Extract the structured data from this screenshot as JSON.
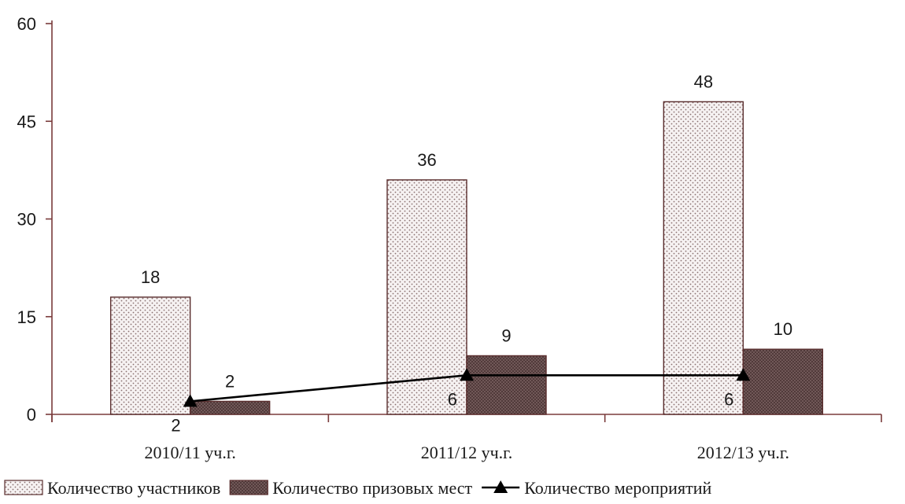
{
  "chart_data": {
    "type": "bar",
    "categories": [
      "2010/11 уч.г.",
      "2011/12 уч.г.",
      "2012/13 уч.г."
    ],
    "series": [
      {
        "name": "Количество участников",
        "type": "bar",
        "values": [
          18,
          36,
          48
        ],
        "labels": [
          "18",
          "36",
          "48"
        ],
        "pattern": "dotted",
        "color": "#f4f0f0"
      },
      {
        "name": "Количество призовых мест",
        "type": "bar",
        "values": [
          2,
          9,
          10
        ],
        "labels": [
          "2",
          "9",
          "10"
        ],
        "pattern": "crosshatch",
        "color": "#6e5656"
      },
      {
        "name": "Количество мероприятий",
        "type": "line",
        "marker": "triangle",
        "values": [
          2,
          6,
          6
        ],
        "labels": [
          "2",
          "6",
          "6"
        ],
        "color": "#000000"
      }
    ],
    "title": "",
    "xlabel": "",
    "ylabel": "",
    "ylim": [
      0,
      60
    ],
    "yticks": [
      "0",
      "15",
      "30",
      "45",
      "60"
    ],
    "grid": false,
    "legend_position": "bottom"
  }
}
